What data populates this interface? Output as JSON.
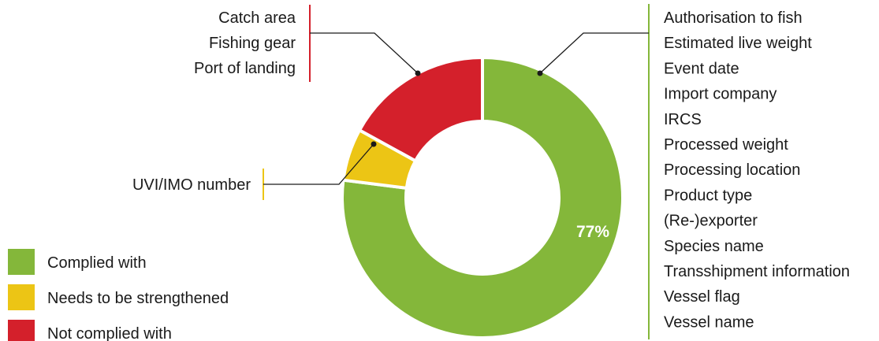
{
  "chart_data": {
    "type": "pie",
    "variant": "donut",
    "slices": [
      {
        "name": "Complied with",
        "value": 77,
        "color": "#84b73a",
        "label": "77%"
      },
      {
        "name": "Needs to be strengthened",
        "value": 6,
        "color": "#ecc515"
      },
      {
        "name": "Not complied with",
        "value": 17,
        "color": "#d4202b"
      }
    ],
    "legend": {
      "placement": "bottom-left",
      "items": [
        {
          "label": "Complied with",
          "color": "#84b73a"
        },
        {
          "label": "Needs to be strengthened",
          "color": "#ecc515"
        },
        {
          "label": "Not complied with",
          "color": "#d4202b"
        }
      ]
    },
    "annotations": {
      "not_complied": [
        "Catch area",
        "Fishing gear",
        "Port of landing"
      ],
      "needs_strengthening": [
        "UVI/IMO number"
      ],
      "complied": [
        "Authorisation to fish",
        "Estimated live weight",
        "Event date",
        "Import company",
        "IRCS",
        "Processed weight",
        "Processing location",
        "Product type",
        "(Re-)exporter",
        "Species name",
        "Transshipment information",
        "Vessel flag",
        "Vessel name"
      ]
    }
  }
}
